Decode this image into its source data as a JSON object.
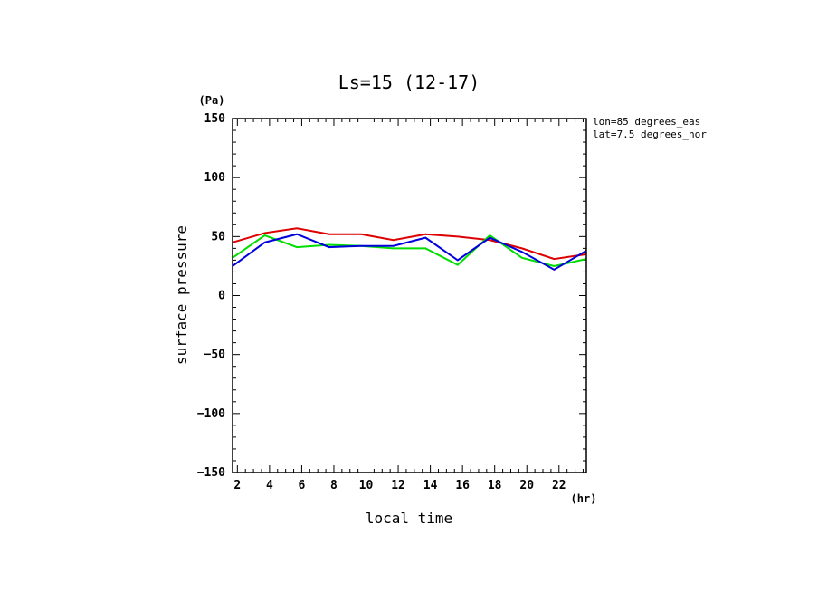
{
  "chart_data": {
    "type": "line",
    "title": "Ls=15 (12-17)",
    "xlabel": "local time",
    "ylabel": "surface pressure",
    "x_unit": "(hr)",
    "y_unit": "(Pa)",
    "annotations": [
      "lon=85 degrees_eas",
      "lat=7.5 degrees_nor"
    ],
    "xlim": [
      1.7,
      23.7
    ],
    "ylim": [
      -150,
      150
    ],
    "xticks": [
      2,
      4,
      6,
      8,
      10,
      12,
      14,
      16,
      18,
      20,
      22
    ],
    "yticks": [
      -150,
      -100,
      -50,
      0,
      50,
      100,
      150
    ],
    "grid": false,
    "series": [
      {
        "color": "#dd0000",
        "x": [
          1.7,
          3.7,
          5.7,
          7.7,
          9.7,
          11.7,
          13.7,
          15.7,
          17.7,
          19.7,
          21.7,
          23.7
        ],
        "values": [
          45,
          53,
          57,
          52,
          52,
          47,
          52,
          50,
          47,
          40,
          31,
          35
        ]
      },
      {
        "color": "#00dd00",
        "x": [
          1.7,
          3.7,
          5.7,
          7.7,
          9.7,
          11.7,
          13.7,
          15.7,
          17.7,
          19.7,
          21.7,
          23.7
        ],
        "values": [
          32,
          51,
          41,
          43,
          42,
          40,
          40,
          26,
          51,
          32,
          25,
          31
        ]
      },
      {
        "color": "#0000dd",
        "x": [
          1.7,
          3.7,
          5.7,
          7.7,
          9.7,
          11.7,
          13.7,
          15.7,
          17.7,
          19.7,
          21.7,
          23.7
        ],
        "values": [
          25,
          45,
          52,
          41,
          42,
          42,
          49,
          30,
          49,
          37,
          22,
          38
        ]
      }
    ]
  }
}
